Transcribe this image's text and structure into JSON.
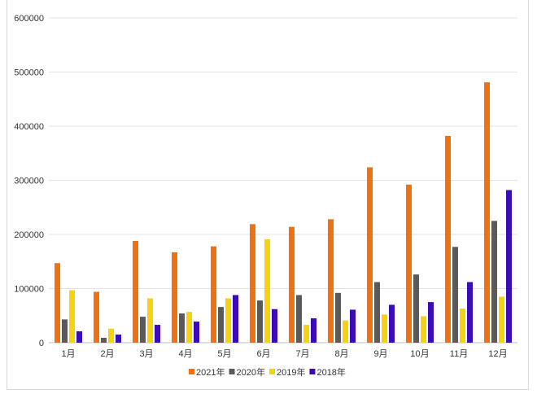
{
  "chart_data": {
    "type": "bar",
    "categories": [
      "1月",
      "2月",
      "3月",
      "4月",
      "5月",
      "6月",
      "7月",
      "8月",
      "9月",
      "10月",
      "11月",
      "12月"
    ],
    "series": [
      {
        "name": "2021年",
        "color": "#F07014",
        "values": [
          147000,
          94000,
          188000,
          167000,
          178000,
          219000,
          214000,
          228000,
          324000,
          292000,
          382000,
          481000
        ]
      },
      {
        "name": "2020年",
        "color": "#5A5A5A",
        "values": [
          43000,
          9000,
          48000,
          54000,
          66000,
          78000,
          88000,
          92000,
          112000,
          126000,
          177000,
          225000
        ]
      },
      {
        "name": "2019年",
        "color": "#F5D310",
        "values": [
          97000,
          26000,
          82000,
          57000,
          82000,
          191000,
          33000,
          41000,
          52000,
          49000,
          63000,
          85000
        ]
      },
      {
        "name": "2018年",
        "color": "#3A0CB5",
        "values": [
          21000,
          15000,
          33000,
          39000,
          88000,
          62000,
          45000,
          61000,
          70000,
          75000,
          112000,
          282000
        ]
      }
    ],
    "yticks": [
      "0",
      "100000",
      "200000",
      "300000",
      "400000",
      "500000",
      "600000"
    ],
    "ylim": [
      0,
      600000
    ],
    "grid": true,
    "legend_position": "bottom"
  }
}
